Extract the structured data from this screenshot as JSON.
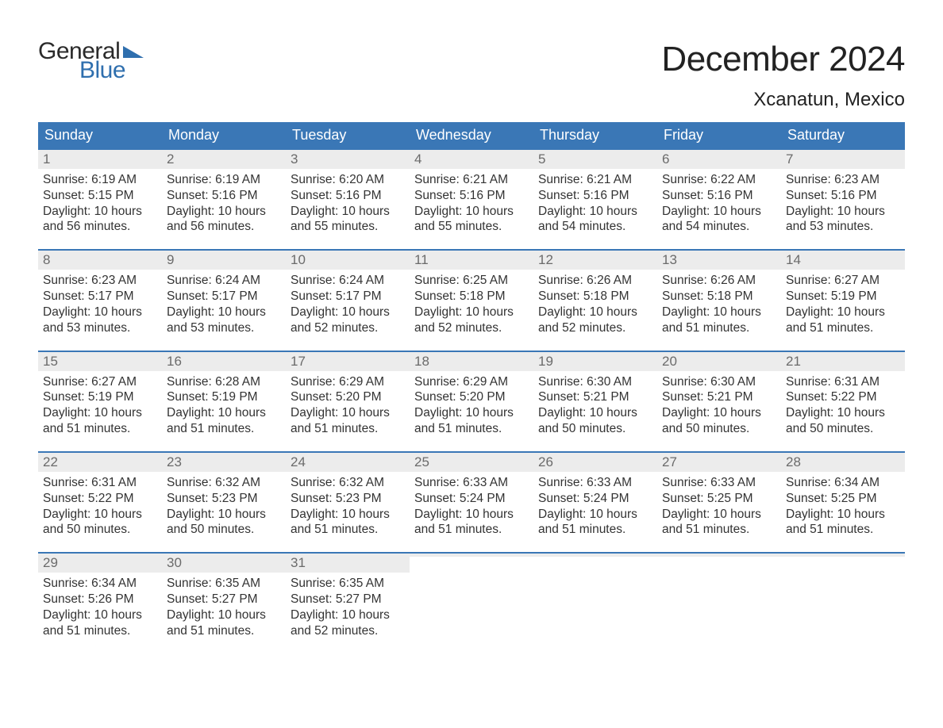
{
  "meta": {
    "logo_text_1": "General",
    "logo_text_2": "Blue",
    "logo_color_1": "#2a2a2a",
    "logo_color_2": "#2f6fae",
    "logo_triangle_color": "#2f6fae",
    "title": "December 2024",
    "location": "Xcanatun, Mexico",
    "title_fontsize": 44,
    "location_fontsize": 24
  },
  "colors": {
    "header_bg": "#3a77b6",
    "header_text": "#ffffff",
    "daynum_bg": "#ececec",
    "daynum_text": "#6b6b6b",
    "daynum_border": "#3a77b6",
    "body_text": "#333333",
    "page_bg": "#ffffff"
  },
  "layout": {
    "type": "calendar",
    "columns": 7,
    "rows": 5,
    "weekday_fontsize": 18,
    "daynum_fontsize": 17,
    "body_fontsize": 15.5,
    "cell_border_top_width": 2
  },
  "weekdays": [
    "Sunday",
    "Monday",
    "Tuesday",
    "Wednesday",
    "Thursday",
    "Friday",
    "Saturday"
  ],
  "labels": {
    "sunrise": "Sunrise:",
    "sunset": "Sunset:",
    "daylight": "Daylight:"
  },
  "weeks": [
    [
      {
        "n": "1",
        "sunrise": "6:19 AM",
        "sunset": "5:15 PM",
        "daylight": "10 hours and 56 minutes."
      },
      {
        "n": "2",
        "sunrise": "6:19 AM",
        "sunset": "5:16 PM",
        "daylight": "10 hours and 56 minutes."
      },
      {
        "n": "3",
        "sunrise": "6:20 AM",
        "sunset": "5:16 PM",
        "daylight": "10 hours and 55 minutes."
      },
      {
        "n": "4",
        "sunrise": "6:21 AM",
        "sunset": "5:16 PM",
        "daylight": "10 hours and 55 minutes."
      },
      {
        "n": "5",
        "sunrise": "6:21 AM",
        "sunset": "5:16 PM",
        "daylight": "10 hours and 54 minutes."
      },
      {
        "n": "6",
        "sunrise": "6:22 AM",
        "sunset": "5:16 PM",
        "daylight": "10 hours and 54 minutes."
      },
      {
        "n": "7",
        "sunrise": "6:23 AM",
        "sunset": "5:16 PM",
        "daylight": "10 hours and 53 minutes."
      }
    ],
    [
      {
        "n": "8",
        "sunrise": "6:23 AM",
        "sunset": "5:17 PM",
        "daylight": "10 hours and 53 minutes."
      },
      {
        "n": "9",
        "sunrise": "6:24 AM",
        "sunset": "5:17 PM",
        "daylight": "10 hours and 53 minutes."
      },
      {
        "n": "10",
        "sunrise": "6:24 AM",
        "sunset": "5:17 PM",
        "daylight": "10 hours and 52 minutes."
      },
      {
        "n": "11",
        "sunrise": "6:25 AM",
        "sunset": "5:18 PM",
        "daylight": "10 hours and 52 minutes."
      },
      {
        "n": "12",
        "sunrise": "6:26 AM",
        "sunset": "5:18 PM",
        "daylight": "10 hours and 52 minutes."
      },
      {
        "n": "13",
        "sunrise": "6:26 AM",
        "sunset": "5:18 PM",
        "daylight": "10 hours and 51 minutes."
      },
      {
        "n": "14",
        "sunrise": "6:27 AM",
        "sunset": "5:19 PM",
        "daylight": "10 hours and 51 minutes."
      }
    ],
    [
      {
        "n": "15",
        "sunrise": "6:27 AM",
        "sunset": "5:19 PM",
        "daylight": "10 hours and 51 minutes."
      },
      {
        "n": "16",
        "sunrise": "6:28 AM",
        "sunset": "5:19 PM",
        "daylight": "10 hours and 51 minutes."
      },
      {
        "n": "17",
        "sunrise": "6:29 AM",
        "sunset": "5:20 PM",
        "daylight": "10 hours and 51 minutes."
      },
      {
        "n": "18",
        "sunrise": "6:29 AM",
        "sunset": "5:20 PM",
        "daylight": "10 hours and 51 minutes."
      },
      {
        "n": "19",
        "sunrise": "6:30 AM",
        "sunset": "5:21 PM",
        "daylight": "10 hours and 50 minutes."
      },
      {
        "n": "20",
        "sunrise": "6:30 AM",
        "sunset": "5:21 PM",
        "daylight": "10 hours and 50 minutes."
      },
      {
        "n": "21",
        "sunrise": "6:31 AM",
        "sunset": "5:22 PM",
        "daylight": "10 hours and 50 minutes."
      }
    ],
    [
      {
        "n": "22",
        "sunrise": "6:31 AM",
        "sunset": "5:22 PM",
        "daylight": "10 hours and 50 minutes."
      },
      {
        "n": "23",
        "sunrise": "6:32 AM",
        "sunset": "5:23 PM",
        "daylight": "10 hours and 50 minutes."
      },
      {
        "n": "24",
        "sunrise": "6:32 AM",
        "sunset": "5:23 PM",
        "daylight": "10 hours and 51 minutes."
      },
      {
        "n": "25",
        "sunrise": "6:33 AM",
        "sunset": "5:24 PM",
        "daylight": "10 hours and 51 minutes."
      },
      {
        "n": "26",
        "sunrise": "6:33 AM",
        "sunset": "5:24 PM",
        "daylight": "10 hours and 51 minutes."
      },
      {
        "n": "27",
        "sunrise": "6:33 AM",
        "sunset": "5:25 PM",
        "daylight": "10 hours and 51 minutes."
      },
      {
        "n": "28",
        "sunrise": "6:34 AM",
        "sunset": "5:25 PM",
        "daylight": "10 hours and 51 minutes."
      }
    ],
    [
      {
        "n": "29",
        "sunrise": "6:34 AM",
        "sunset": "5:26 PM",
        "daylight": "10 hours and 51 minutes."
      },
      {
        "n": "30",
        "sunrise": "6:35 AM",
        "sunset": "5:27 PM",
        "daylight": "10 hours and 51 minutes."
      },
      {
        "n": "31",
        "sunrise": "6:35 AM",
        "sunset": "5:27 PM",
        "daylight": "10 hours and 52 minutes."
      },
      {
        "empty": true
      },
      {
        "empty": true
      },
      {
        "empty": true
      },
      {
        "empty": true
      }
    ]
  ]
}
